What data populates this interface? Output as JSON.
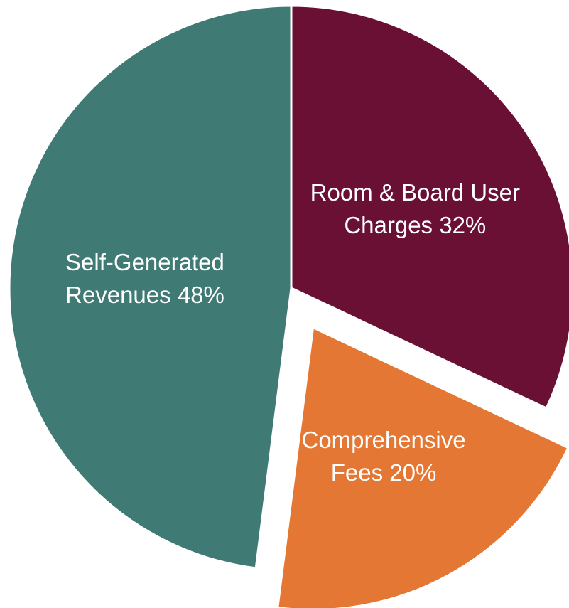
{
  "chart_data": {
    "type": "pie",
    "categories": [
      "Room & Board User Charges",
      "Comprehensive Fees",
      "Self-Generated Revenues"
    ],
    "values": [
      32,
      20,
      48
    ],
    "value_labels": [
      "32%",
      "20%",
      "48%"
    ],
    "colors": [
      "#6b1035",
      "#e37733",
      "#3f7a74"
    ],
    "explode": [
      0,
      0.16,
      0
    ]
  }
}
